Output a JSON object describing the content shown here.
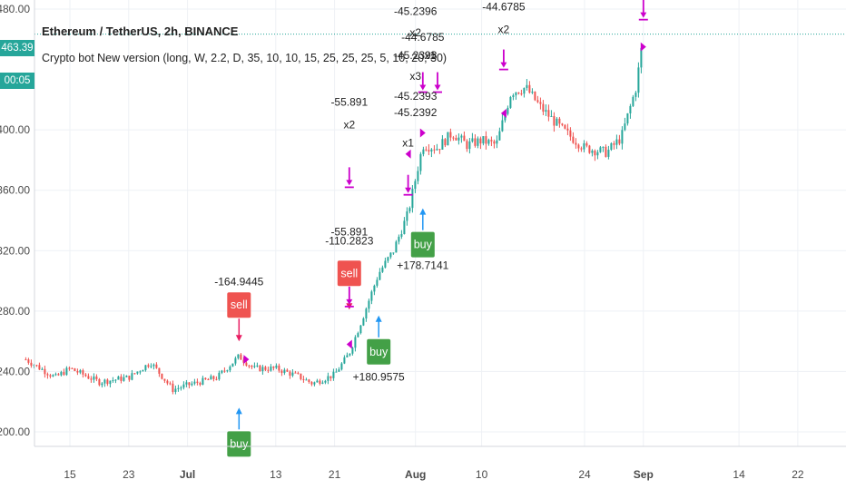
{
  "header": {
    "title": "Ethereum / TetherUS, 2h, BINANCE",
    "indicator": "Crypto bot New version (long, W, 2.2, D, 35, 10, 10, 15, 25, 25, 25, 5, 10, 20, 30)"
  },
  "price_tags": {
    "last_price": "463.39",
    "countdown": "00:05"
  },
  "colors": {
    "up": "#26a69a",
    "down": "#ef5350",
    "buy_label": "#43a047",
    "sell_label": "#ef5350",
    "exit_marker": "#cc00cc",
    "entry_arrow": "#2196f3",
    "exit_arrow": "#e91e63",
    "price_line": "#26a69a",
    "grid": "#eef1f5"
  },
  "chart_data": {
    "type": "candlestick",
    "title": "Ethereum / TetherUS, 2h, BINANCE",
    "xlabel": "",
    "ylabel": "",
    "ylim": [
      188,
      480
    ],
    "y_ticks": [
      "480.00",
      "400.00",
      "360.00",
      "320.00",
      "280.00",
      "240.00",
      "200.00"
    ],
    "x_ticks": [
      "15",
      "23",
      "Jul",
      "13",
      "21",
      "Aug",
      "10",
      "24",
      "Sep",
      "14",
      "22"
    ],
    "grid": true,
    "last_price": 463.39,
    "price_path": [
      {
        "date": "Jun 09",
        "price": 248
      },
      {
        "date": "Jun 13",
        "price": 236
      },
      {
        "date": "Jun 15",
        "price": 242
      },
      {
        "date": "Jun 19",
        "price": 233
      },
      {
        "date": "Jun 23",
        "price": 236
      },
      {
        "date": "Jun 26",
        "price": 246
      },
      {
        "date": "Jun 29",
        "price": 228
      },
      {
        "date": "Jul 01",
        "price": 231
      },
      {
        "date": "Jul 05",
        "price": 236
      },
      {
        "date": "Jul 08",
        "price": 250
      },
      {
        "date": "Jul 10",
        "price": 242
      },
      {
        "date": "Jul 13",
        "price": 242
      },
      {
        "date": "Jul 16",
        "price": 237
      },
      {
        "date": "Jul 18",
        "price": 232
      },
      {
        "date": "Jul 21",
        "price": 238
      },
      {
        "date": "Jul 23",
        "price": 252
      },
      {
        "date": "Jul 25",
        "price": 278
      },
      {
        "date": "Jul 27",
        "price": 305
      },
      {
        "date": "Jul 29",
        "price": 320
      },
      {
        "date": "Jul 31",
        "price": 345
      },
      {
        "date": "Aug 02",
        "price": 390
      },
      {
        "date": "Aug 04",
        "price": 388
      },
      {
        "date": "Aug 06",
        "price": 398
      },
      {
        "date": "Aug 08",
        "price": 390
      },
      {
        "date": "Aug 10",
        "price": 393
      },
      {
        "date": "Aug 12",
        "price": 390
      },
      {
        "date": "Aug 14",
        "price": 425
      },
      {
        "date": "Aug 16",
        "price": 428
      },
      {
        "date": "Aug 18",
        "price": 415
      },
      {
        "date": "Aug 21",
        "price": 400
      },
      {
        "date": "Aug 24",
        "price": 388
      },
      {
        "date": "Aug 27",
        "price": 385
      },
      {
        "date": "Aug 29",
        "price": 395
      },
      {
        "date": "Aug 31",
        "price": 428
      },
      {
        "date": "Sep 01",
        "price": 463
      }
    ],
    "annotations": [
      {
        "text": "-164.9445",
        "date": "Jul 08",
        "price": 297
      },
      {
        "text": "sell",
        "date": "Jul 08",
        "price": 284,
        "kind": "sell"
      },
      {
        "text": "buy",
        "date": "Jul 08",
        "price": 192,
        "kind": "buy"
      },
      {
        "text": "-55.891",
        "date": "Jul 23",
        "price": 416
      },
      {
        "text": "x2",
        "date": "Jul 23",
        "price": 401
      },
      {
        "text": "-55.891",
        "date": "Jul 23",
        "price": 330
      },
      {
        "text": "-110.2823",
        "date": "Jul 23",
        "price": 324
      },
      {
        "text": "sell",
        "date": "Jul 23",
        "price": 305,
        "kind": "sell"
      },
      {
        "text": "buy",
        "date": "Jul 27",
        "price": 253,
        "kind": "buy"
      },
      {
        "text": "+180.9575",
        "date": "Jul 27",
        "price": 234
      },
      {
        "text": "-45.2396",
        "date": "Aug 01",
        "price": 476
      },
      {
        "text": "x2",
        "date": "Aug 01",
        "price": 462
      },
      {
        "text": "-44.6785",
        "date": "Aug 02",
        "price": 459
      },
      {
        "text": "-45.2393",
        "date": "Aug 01",
        "price": 447
      },
      {
        "text": "x1",
        "date": "Aug 03",
        "price": 447
      },
      {
        "text": "x3",
        "date": "Aug 01",
        "price": 433
      },
      {
        "text": "-45.2393",
        "date": "Aug 01",
        "price": 420
      },
      {
        "text": "-45.2392",
        "date": "Aug 01",
        "price": 409
      },
      {
        "text": "x1",
        "date": "Jul 31",
        "price": 389
      },
      {
        "text": "buy",
        "date": "Aug 02",
        "price": 324,
        "kind": "buy"
      },
      {
        "text": "+178.7141",
        "date": "Aug 02",
        "price": 308
      },
      {
        "text": "-44.6785",
        "date": "Aug 13",
        "price": 479
      },
      {
        "text": "x2",
        "date": "Aug 13",
        "price": 464
      }
    ]
  }
}
